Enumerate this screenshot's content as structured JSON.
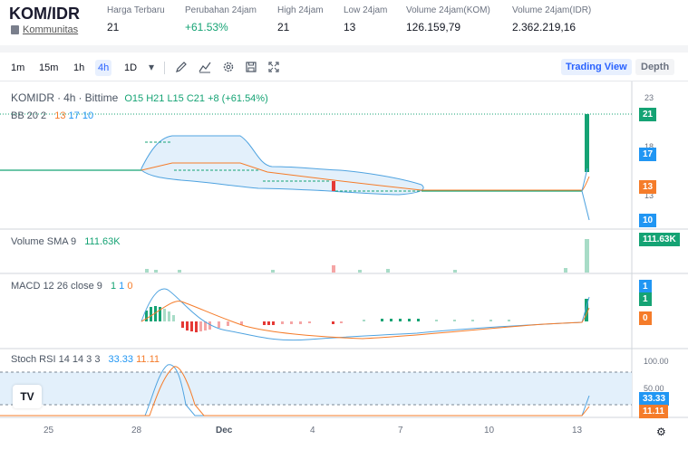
{
  "header": {
    "pair": "KOM/IDR",
    "community_label": "Kommunitas",
    "stats": [
      {
        "label": "Harga Terbaru",
        "value": "21",
        "color": "#131722"
      },
      {
        "label": "Perubahan 24jam",
        "value": "+61.53%",
        "color": "#15a374"
      },
      {
        "label": "High 24jam",
        "value": "21",
        "color": "#131722"
      },
      {
        "label": "Low 24jam",
        "value": "13",
        "color": "#131722"
      },
      {
        "label": "Volume 24jam(KOM)",
        "value": "126.159,79",
        "color": "#131722"
      },
      {
        "label": "Volume 24jam(IDR)",
        "value": "2.362.219,16",
        "color": "#131722"
      }
    ]
  },
  "toolbar": {
    "intervals": [
      "1m",
      "15m",
      "1h",
      "4h",
      "1D"
    ],
    "active_interval": "4h",
    "icons": [
      "chevron-down-icon",
      "draw-icon",
      "indicators-icon",
      "settings-icon",
      "save-icon",
      "fullscreen-icon"
    ],
    "trading_view_label": "Trading View",
    "depth_label": "Depth"
  },
  "chart": {
    "main_legend": {
      "symbol": "KOMIDR",
      "sep1": "·",
      "interval": "4h",
      "sep2": "·",
      "exchange": "Bittime",
      "ohlc": "O15 H21 L15 C21 +8 (+61.54%)"
    },
    "bb_legend": {
      "label": "BB 20 2",
      "v1": "13",
      "v2": "17",
      "v3": "10"
    },
    "volume_legend": {
      "label": "Volume SMA 9",
      "value": "111.63K"
    },
    "macd_legend": {
      "label": "MACD 12 26 close 9",
      "v1": "1",
      "v2": "1",
      "v3": "0"
    },
    "stoch_legend": {
      "label": "Stoch RSI 14 14 3 3",
      "v1": "33.33",
      "v2": "11.11"
    },
    "price_axis": [
      "23",
      "18",
      "13"
    ],
    "price_tags": [
      {
        "value": "21",
        "color": "#15a374"
      },
      {
        "value": "17",
        "color": "#2196f3"
      },
      {
        "value": "13",
        "color": "#f57c2a"
      },
      {
        "value": "10",
        "color": "#2196f3"
      }
    ],
    "volume_tag": {
      "value": "111.63K",
      "color": "#15a374"
    },
    "macd_tags": [
      {
        "value": "1",
        "color": "#2196f3"
      },
      {
        "value": "1",
        "color": "#15a374"
      },
      {
        "value": "0",
        "color": "#f57c2a"
      }
    ],
    "stoch_axis": [
      "100.00",
      "50.00"
    ],
    "stoch_tags": [
      {
        "value": "33.33",
        "color": "#2196f3"
      },
      {
        "value": "11.11",
        "color": "#f57c2a"
      }
    ],
    "x_labels": [
      "25",
      "28",
      "Dec",
      "4",
      "7",
      "10",
      "13"
    ],
    "logo_text": "TV"
  }
}
